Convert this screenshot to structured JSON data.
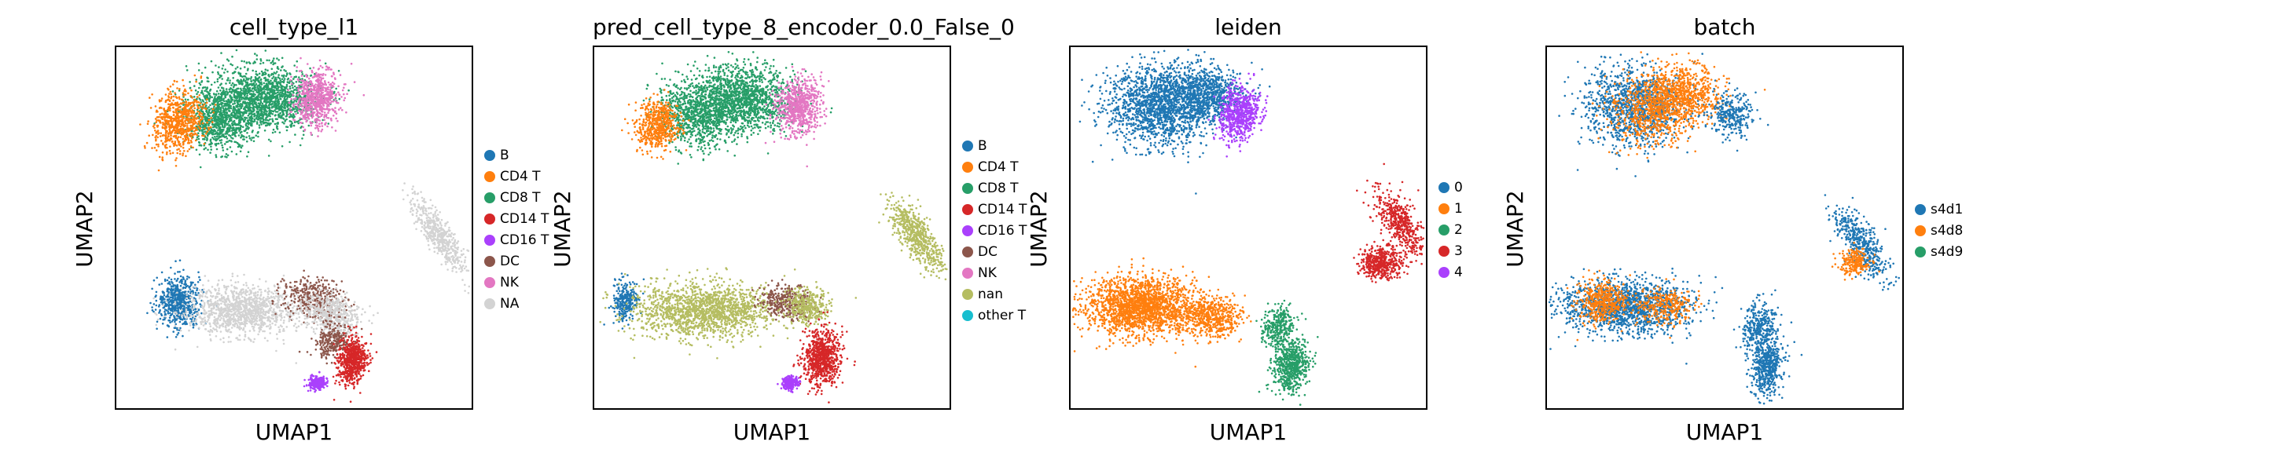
{
  "chart_data": [
    {
      "type": "scatter",
      "title": "cell_type_l1",
      "xlabel": "UMAP1",
      "ylabel": "UMAP2",
      "legend_position": "right",
      "grid": false,
      "categories": [
        {
          "name": "B",
          "color": "#1f77b4"
        },
        {
          "name": "CD4 T",
          "color": "#ff7f0e"
        },
        {
          "name": "CD8 T",
          "color": "#279e68"
        },
        {
          "name": "CD14 T",
          "color": "#d62728"
        },
        {
          "name": "CD16 T",
          "color": "#aa40fc"
        },
        {
          "name": "DC",
          "color": "#8c564b"
        },
        {
          "name": "NK",
          "color": "#e377c2"
        },
        {
          "name": "NA",
          "color": "#d3d3d3"
        }
      ]
    },
    {
      "type": "scatter",
      "title": "pred_cell_type_8_encoder_0.0_False_0",
      "xlabel": "UMAP1",
      "ylabel": "UMAP2",
      "legend_position": "right",
      "grid": false,
      "categories": [
        {
          "name": "B",
          "color": "#1f77b4"
        },
        {
          "name": "CD4 T",
          "color": "#ff7f0e"
        },
        {
          "name": "CD8 T",
          "color": "#279e68"
        },
        {
          "name": "CD14 T",
          "color": "#d62728"
        },
        {
          "name": "CD16 T",
          "color": "#aa40fc"
        },
        {
          "name": "DC",
          "color": "#8c564b"
        },
        {
          "name": "NK",
          "color": "#e377c2"
        },
        {
          "name": "nan",
          "color": "#b5bd61"
        },
        {
          "name": "other T",
          "color": "#17becf"
        }
      ]
    },
    {
      "type": "scatter",
      "title": "leiden",
      "xlabel": "UMAP1",
      "ylabel": "UMAP2",
      "legend_position": "right",
      "grid": false,
      "categories": [
        {
          "name": "0",
          "color": "#1f77b4"
        },
        {
          "name": "1",
          "color": "#ff7f0e"
        },
        {
          "name": "2",
          "color": "#279e68"
        },
        {
          "name": "3",
          "color": "#d62728"
        },
        {
          "name": "4",
          "color": "#aa40fc"
        }
      ]
    },
    {
      "type": "scatter",
      "title": "batch",
      "xlabel": "UMAP1",
      "ylabel": "UMAP2",
      "legend_position": "right",
      "grid": false,
      "categories": [
        {
          "name": "s4d1",
          "color": "#1f77b4"
        },
        {
          "name": "s4d8",
          "color": "#ff7f0e"
        },
        {
          "name": "s4d9",
          "color": "#279e68"
        }
      ]
    }
  ]
}
